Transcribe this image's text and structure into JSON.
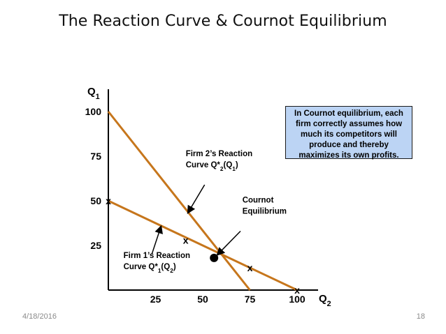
{
  "slide": {
    "title": "The Reaction Curve & Cournot Equilibrium",
    "date": "4/18/2016",
    "page_number": "18"
  },
  "colors": {
    "curve": "#c6761c",
    "axis": "#000000",
    "callout_bg": "#bcd4f4"
  },
  "callout_text": "In Cournot equilibrium, each firm correctly assumes how much its competitors will produce and thereby maximizes its own profits.",
  "chart_data": {
    "type": "line",
    "title": "",
    "xlabel": {
      "main": "Q",
      "sub": "2"
    },
    "ylabel": {
      "main": "Q",
      "sub": "1"
    },
    "xlim": [
      0,
      100
    ],
    "ylim": [
      0,
      100
    ],
    "x_ticks": [
      25,
      50,
      75,
      100
    ],
    "y_ticks": [
      25,
      50,
      75,
      100
    ],
    "grid": false,
    "series": [
      {
        "name": "Firm 2's Reaction Curve",
        "points": [
          [
            0,
            100
          ],
          [
            75,
            0
          ]
        ]
      },
      {
        "name": "Firm 1's Reaction Curve",
        "points": [
          [
            0,
            50
          ],
          [
            100,
            0
          ]
        ]
      }
    ],
    "x_markers": [
      {
        "label": "x",
        "x": 0,
        "y": 50
      },
      {
        "label": "x",
        "x": 41,
        "y": 28
      },
      {
        "label": "x",
        "x": 75,
        "y": 12.5
      },
      {
        "label": "x",
        "x": 100,
        "y": 0
      }
    ],
    "equilibrium": {
      "x": 56,
      "y": 18
    },
    "annotations": [
      {
        "id": "firm2",
        "lines": [
          [
            {
              "t": "Firm 2’s Reaction"
            }
          ],
          [
            {
              "t": "Curve Q*"
            },
            {
              "t": "2",
              "sub": true
            },
            {
              "t": "(Q"
            },
            {
              "t": "1",
              "sub": true
            },
            {
              "t": ")"
            }
          ]
        ],
        "text_at": [
          41,
          75
        ],
        "arrow_from": [
          51,
          59
        ],
        "arrow_to": [
          42,
          43
        ]
      },
      {
        "id": "firm1",
        "lines": [
          [
            {
              "t": "Firm 1’s Reaction"
            }
          ],
          [
            {
              "t": "Curve Q*"
            },
            {
              "t": "1",
              "sub": true
            },
            {
              "t": "(Q"
            },
            {
              "t": "2",
              "sub": true
            },
            {
              "t": ")"
            }
          ]
        ],
        "text_at": [
          8,
          18
        ],
        "arrow_from": [
          23,
          20
        ],
        "arrow_to": [
          28,
          36
        ]
      },
      {
        "id": "cournot",
        "lines": [
          [
            {
              "t": "Cournot"
            }
          ],
          [
            {
              "t": "Equilibrium"
            }
          ]
        ],
        "text_at": [
          71,
          49
        ],
        "arrow_from": [
          70,
          33
        ],
        "arrow_to": [
          57.5,
          19.5
        ]
      }
    ]
  }
}
